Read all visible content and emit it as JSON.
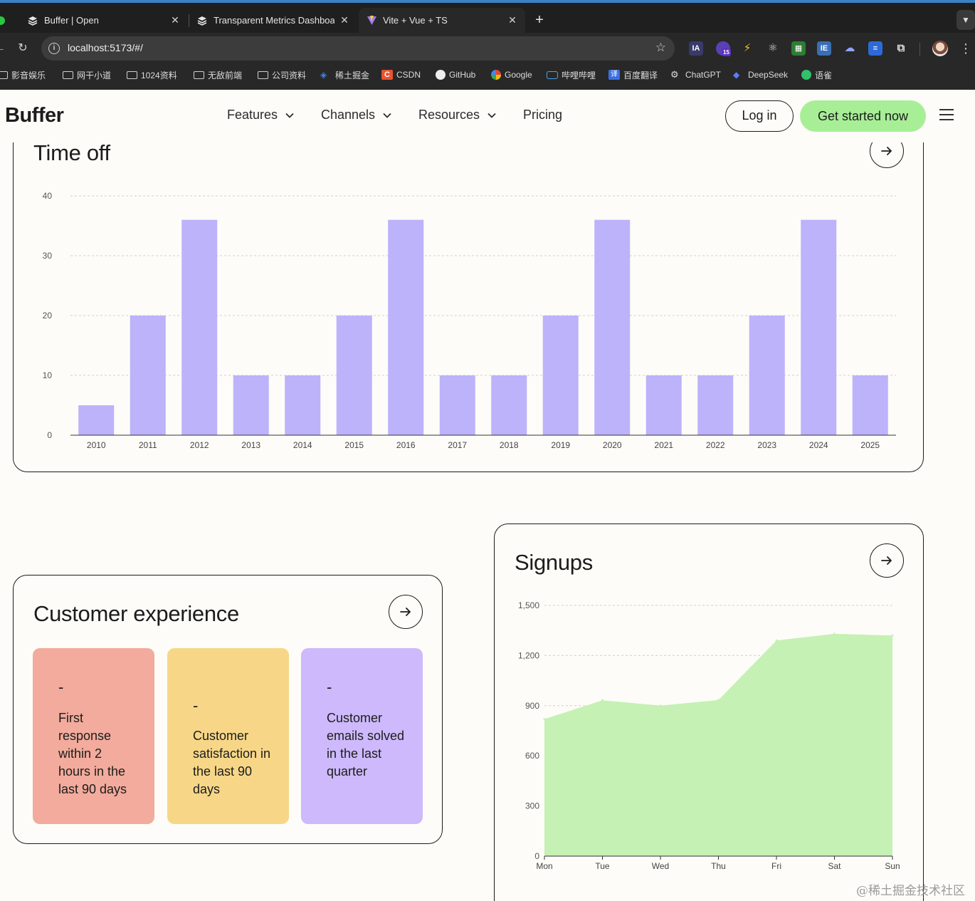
{
  "browser": {
    "tabs": [
      {
        "label": "Buffer | Open",
        "active": false
      },
      {
        "label": "Transparent Metrics Dashboa",
        "active": false
      },
      {
        "label": "Vite + Vue + TS",
        "active": true
      }
    ],
    "url": "localhost:5173/#/",
    "bookmarks": [
      "影音娱乐",
      "网干小道",
      "1024资料",
      "无敌前端",
      "公司资料",
      "稀土掘金",
      "CSDN",
      "GitHub",
      "Google",
      "哔哩哔哩",
      "百度翻译",
      "ChatGPT",
      "DeepSeek",
      "语雀"
    ],
    "ext_badge": "15",
    "ext_ia": "IA"
  },
  "site": {
    "logo": "Buffer",
    "nav": [
      "Features",
      "Channels",
      "Resources",
      "Pricing"
    ],
    "login": "Log in",
    "cta": "Get started now"
  },
  "timeoff": {
    "title": "Time off",
    "chart_data": {
      "type": "bar",
      "categories": [
        "2010",
        "2011",
        "2012",
        "2013",
        "2014",
        "2015",
        "2016",
        "2017",
        "2018",
        "2019",
        "2020",
        "2021",
        "2022",
        "2023",
        "2024",
        "2025"
      ],
      "values": [
        5,
        20,
        36,
        10,
        10,
        20,
        36,
        10,
        10,
        20,
        36,
        10,
        10,
        20,
        36,
        10
      ],
      "yticks": [
        "0",
        "10",
        "20",
        "30",
        "40"
      ],
      "ylim": [
        0,
        40
      ],
      "grid": true,
      "color": "#bcb3fb"
    }
  },
  "customer_experience": {
    "title": "Customer experience",
    "stats": [
      {
        "value": "-",
        "label": "First response within 2 hours in the last 90 days",
        "color": "#f2ab9c"
      },
      {
        "value": "-",
        "label": "Customer satisfaction in the last 90 days",
        "color": "#f7d787"
      },
      {
        "value": "-",
        "label": "Customer emails solved in the last quarter",
        "color": "#cdb9fb"
      }
    ]
  },
  "signups": {
    "title": "Signups",
    "chart_data": {
      "type": "area",
      "categories": [
        "Mon",
        "Tue",
        "Wed",
        "Thu",
        "Fri",
        "Sat",
        "Sun"
      ],
      "values": [
        820,
        932,
        901,
        934,
        1290,
        1330,
        1320
      ],
      "yticks": [
        "0",
        "300",
        "600",
        "900",
        "1,200",
        "1,500"
      ],
      "ylim": [
        0,
        1500
      ],
      "grid": true,
      "color": "#c5f1b4"
    }
  },
  "watermark": "@稀土掘金技术社区"
}
